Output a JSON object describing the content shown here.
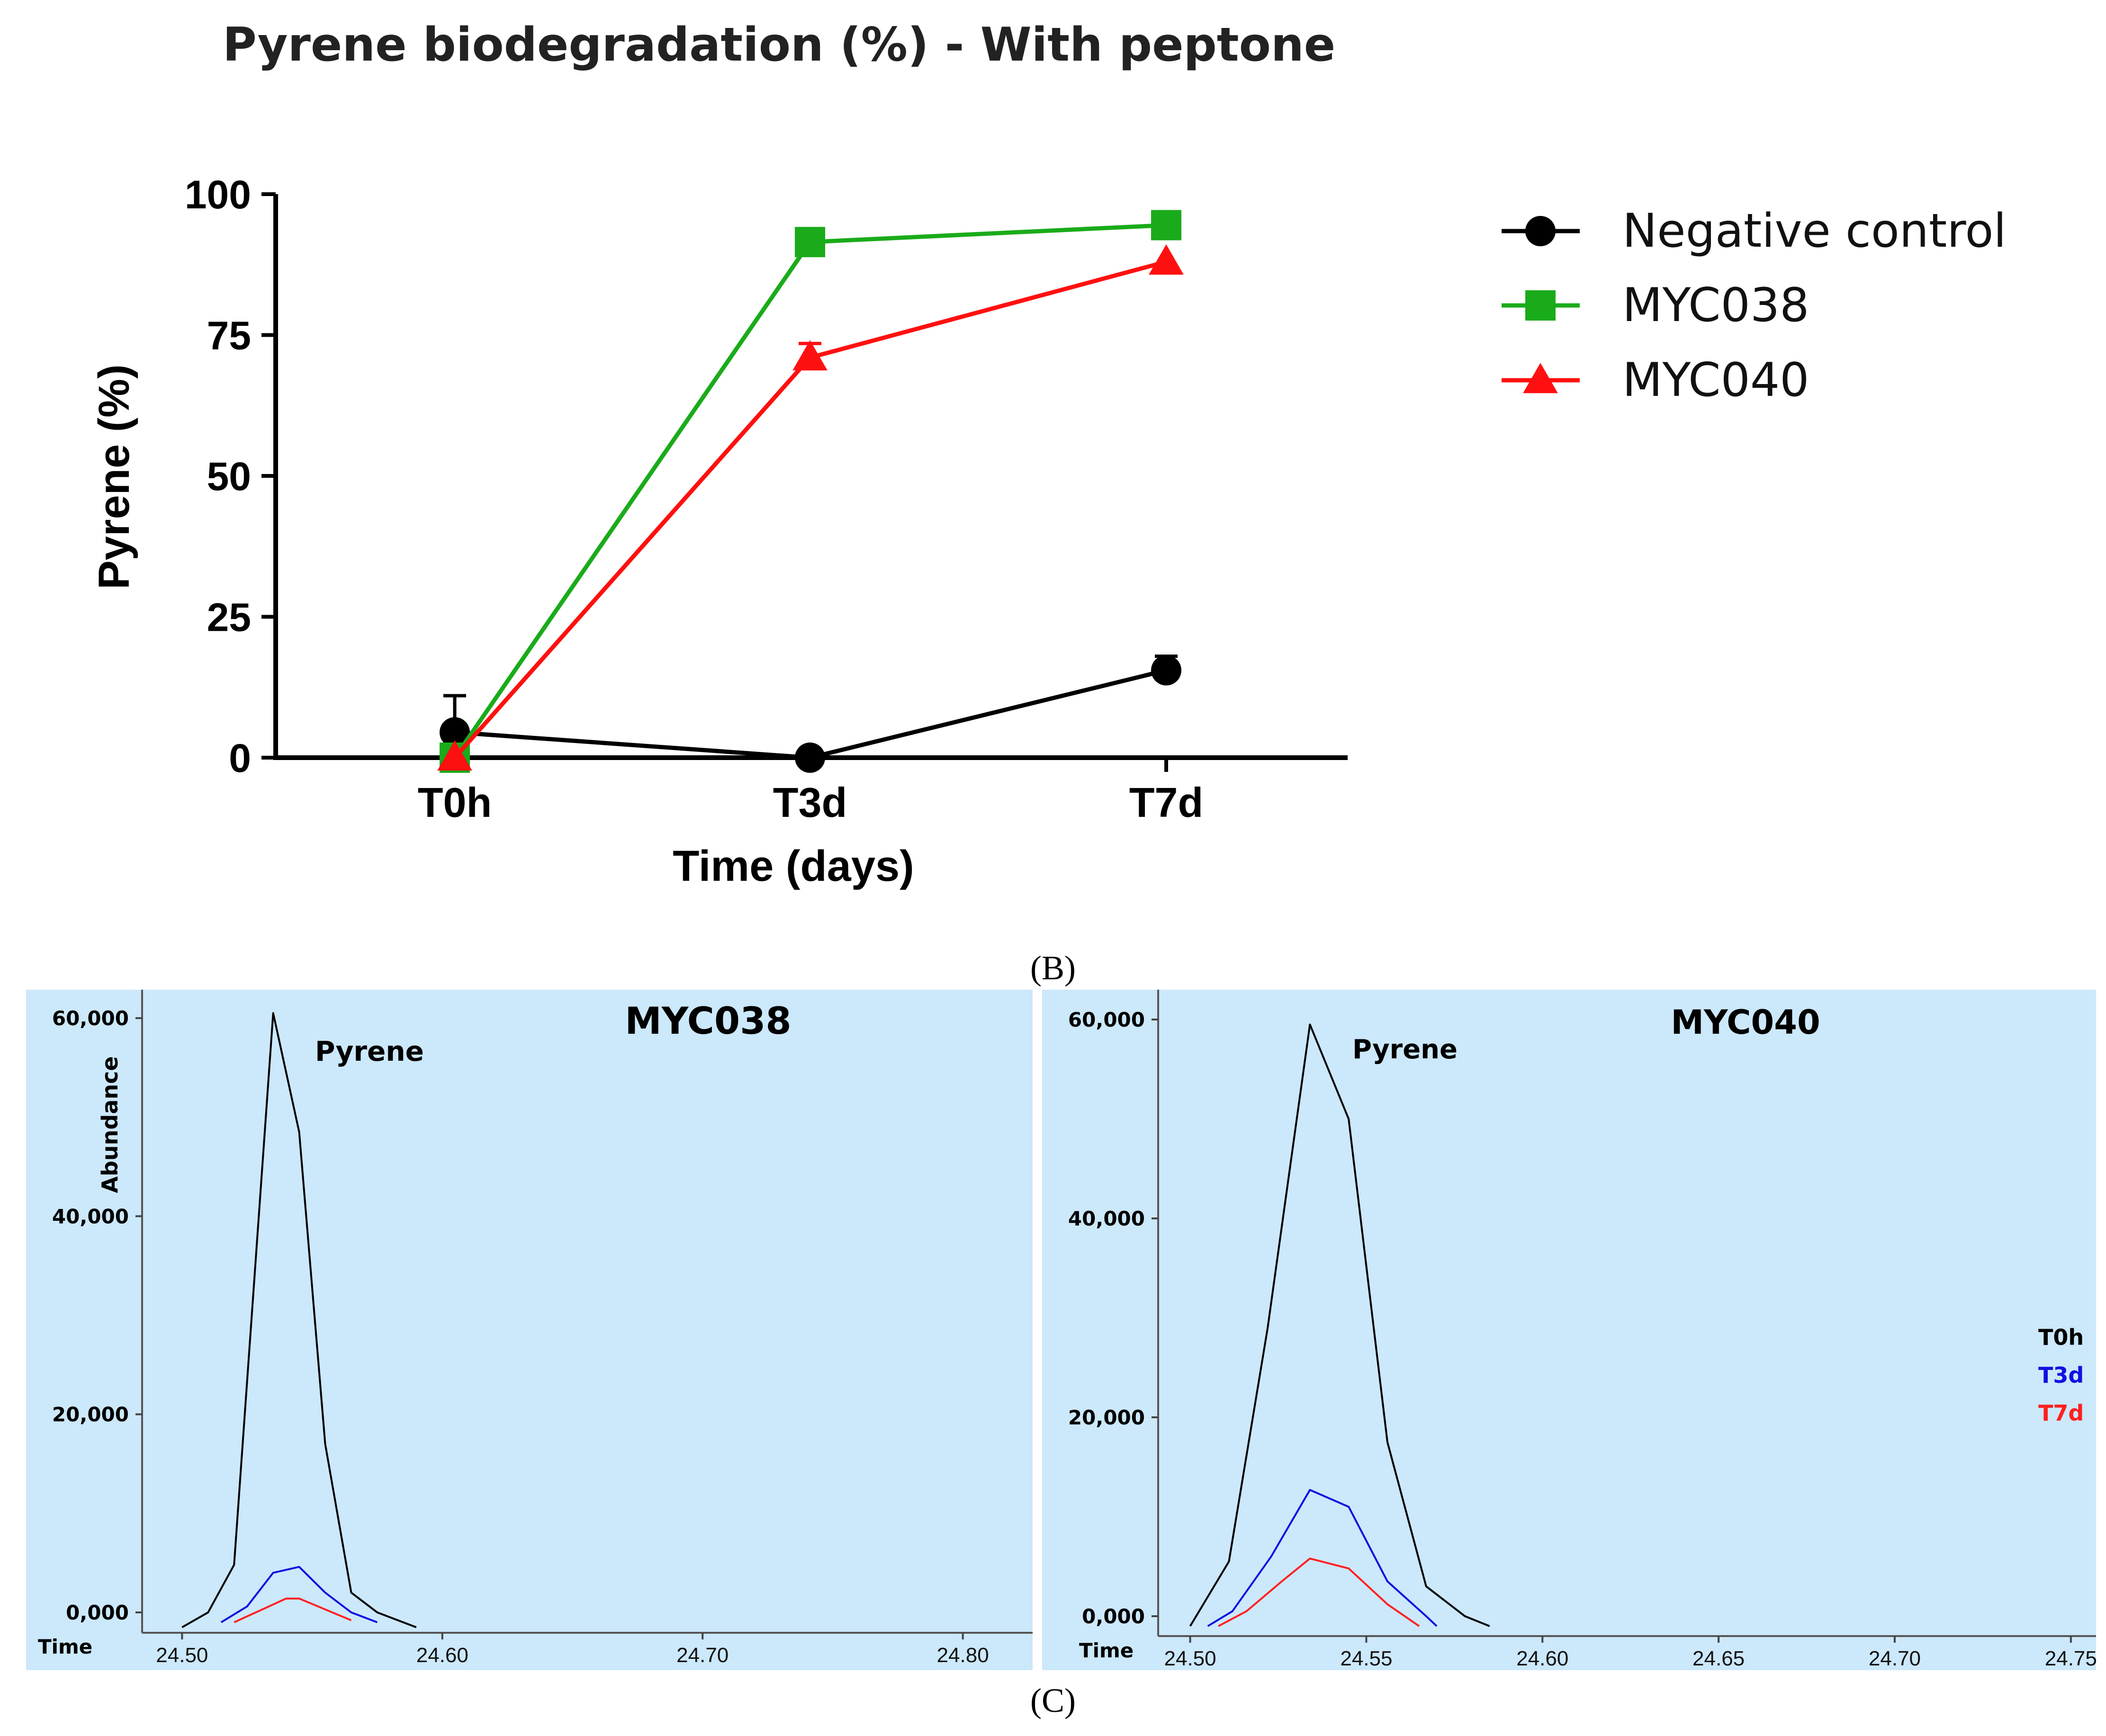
{
  "chart_data": [
    {
      "type": "line",
      "title": "Pyrene biodegradation (%) - With peptone",
      "xlabel": "Time (days)",
      "ylabel": "Pyrene (%)",
      "categories": [
        "T0h",
        "T3d",
        "T7d"
      ],
      "ylim": [
        0,
        100
      ],
      "yticks": [
        0,
        25,
        50,
        75,
        100
      ],
      "series": [
        {
          "name": "Negative control",
          "color": "#000000",
          "marker": "circle",
          "values": [
            4.5,
            0,
            15.5
          ],
          "err": [
            6.5,
            0,
            2.5
          ]
        },
        {
          "name": "MYC038",
          "color": "#1aab1a",
          "marker": "square",
          "values": [
            0,
            91.5,
            94.5
          ],
          "err": [
            0,
            0,
            0
          ]
        },
        {
          "name": "MYC040",
          "color": "#ff1010",
          "marker": "triangle",
          "values": [
            0,
            71,
            88
          ],
          "err": [
            0,
            2.5,
            0
          ]
        }
      ],
      "legend_position": "right"
    },
    {
      "type": "line",
      "title": "MYC038",
      "peak_label": "Pyrene",
      "xlabel": "Time",
      "ylabel": "Abundance",
      "xlim": [
        24.475,
        24.825
      ],
      "xticks": [
        24.5,
        24.6,
        24.7,
        24.8
      ],
      "xtick_labels": [
        "24.50",
        "24.60",
        "24.70",
        "24.80"
      ],
      "ylim": [
        0,
        60000
      ],
      "yticks": [
        0,
        20000,
        40000,
        60000
      ],
      "ytick_labels": [
        "0,000",
        "20,000",
        "40,000",
        "60,000"
      ],
      "series": [
        {
          "name": "T0h",
          "color": "#000000",
          "x": [
            24.5,
            24.51,
            24.52,
            24.535,
            24.545,
            24.555,
            24.565,
            24.575,
            24.59
          ],
          "y": [
            -1500,
            0,
            4800,
            60500,
            48500,
            17000,
            2000,
            0,
            -1500
          ]
        },
        {
          "name": "T3d",
          "color": "#1010e0",
          "x": [
            24.515,
            24.525,
            24.535,
            24.545,
            24.555,
            24.565,
            24.575
          ],
          "y": [
            -1000,
            600,
            4000,
            4600,
            2000,
            0,
            -1000
          ]
        },
        {
          "name": "T7d",
          "color": "#ff2020",
          "x": [
            24.52,
            24.53,
            24.54,
            24.545,
            24.555,
            24.565
          ],
          "y": [
            -1000,
            200,
            1400,
            1400,
            300,
            -800
          ]
        }
      ]
    },
    {
      "type": "line",
      "title": "MYC040",
      "peak_label": "Pyrene",
      "xlabel": "Time",
      "xlim": [
        24.485,
        24.755
      ],
      "xticks": [
        24.5,
        24.55,
        24.6,
        24.65,
        24.7,
        24.75
      ],
      "xtick_labels": [
        "24.50",
        "24.55",
        "24.60",
        "24.65",
        "24.70",
        "24.75"
      ],
      "ylim": [
        0,
        60000
      ],
      "yticks": [
        0,
        20000,
        40000,
        60000
      ],
      "ytick_labels": [
        "0,000",
        "20,000",
        "40,000",
        "60,000"
      ],
      "legend": [
        "T0h",
        "T3d",
        "T7d"
      ],
      "series": [
        {
          "name": "T0h",
          "color": "#000000",
          "x": [
            24.5,
            24.511,
            24.522,
            24.534,
            24.545,
            24.556,
            24.567,
            24.578,
            24.585
          ],
          "y": [
            -1000,
            5500,
            29000,
            59500,
            50000,
            17500,
            3000,
            0,
            -1000
          ]
        },
        {
          "name": "T3d",
          "color": "#1010e0",
          "x": [
            24.505,
            24.512,
            24.523,
            24.534,
            24.545,
            24.556,
            24.567,
            24.57
          ],
          "y": [
            -1000,
            500,
            6000,
            12700,
            11000,
            3500,
            0,
            -1000
          ]
        },
        {
          "name": "T7d",
          "color": "#ff2020",
          "x": [
            24.508,
            24.516,
            24.526,
            24.534,
            24.545,
            24.556,
            24.565
          ],
          "y": [
            -1000,
            500,
            3500,
            5800,
            4800,
            1200,
            -1000
          ]
        }
      ]
    }
  ],
  "panel_labels": {
    "b": "(B)",
    "c": "(C)"
  }
}
